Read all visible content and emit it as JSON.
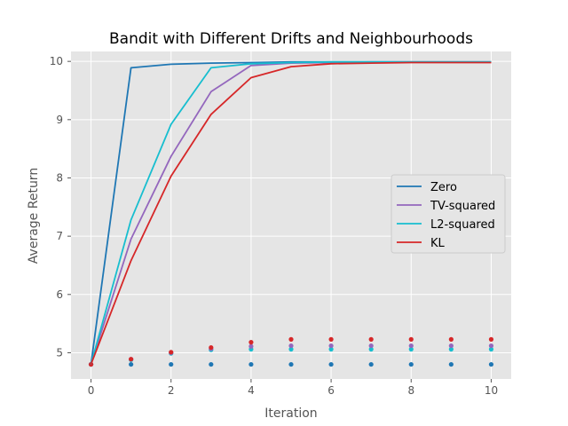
{
  "chart_data": {
    "type": "line",
    "title": "Bandit with Different Drifts and Neighbourhoods",
    "xlabel": "Iteration",
    "ylabel": "Average Return",
    "xlim": [
      -0.5,
      10.5
    ],
    "ylim": [
      4.55,
      10.17
    ],
    "xticks": [
      0,
      2,
      4,
      6,
      8,
      10
    ],
    "yticks": [
      5,
      6,
      7,
      8,
      9,
      10
    ],
    "grid": true,
    "legend_position": "center-right",
    "x": [
      0,
      1,
      2,
      3,
      4,
      5,
      6,
      7,
      8,
      9,
      10
    ],
    "series": [
      {
        "name": "Zero",
        "color": "#1f77b4",
        "values": [
          4.8,
          9.89,
          9.95,
          9.97,
          9.98,
          9.99,
          9.99,
          9.99,
          9.99,
          9.99,
          9.99
        ]
      },
      {
        "name": "TV-squared",
        "color": "#9467bd",
        "values": [
          4.8,
          6.95,
          8.37,
          9.48,
          9.93,
          9.97,
          9.98,
          9.99,
          9.99,
          9.99,
          9.99
        ]
      },
      {
        "name": "L2-squared",
        "color": "#17becf",
        "values": [
          4.8,
          7.28,
          8.92,
          9.89,
          9.96,
          9.98,
          9.99,
          9.99,
          9.99,
          9.99,
          9.99
        ]
      },
      {
        "name": "KL",
        "color": "#d62728",
        "values": [
          4.8,
          6.58,
          8.03,
          9.09,
          9.72,
          9.91,
          9.96,
          9.97,
          9.98,
          9.98,
          9.98
        ]
      }
    ],
    "dot_series": [
      {
        "color": "#1f77b4",
        "values": [
          4.8,
          4.8,
          4.8,
          4.8,
          4.8,
          4.8,
          4.8,
          4.8,
          4.8,
          4.8,
          4.8
        ]
      },
      {
        "color": "#17becf",
        "values": [
          4.8,
          4.88,
          4.99,
          5.05,
          5.06,
          5.06,
          5.06,
          5.06,
          5.06,
          5.06,
          5.06
        ]
      },
      {
        "color": "#9467bd",
        "values": [
          4.8,
          4.89,
          5.0,
          5.07,
          5.11,
          5.12,
          5.12,
          5.12,
          5.12,
          5.12,
          5.12
        ]
      },
      {
        "color": "#d62728",
        "values": [
          4.8,
          4.89,
          5.01,
          5.09,
          5.18,
          5.23,
          5.23,
          5.23,
          5.23,
          5.23,
          5.23
        ]
      }
    ]
  }
}
